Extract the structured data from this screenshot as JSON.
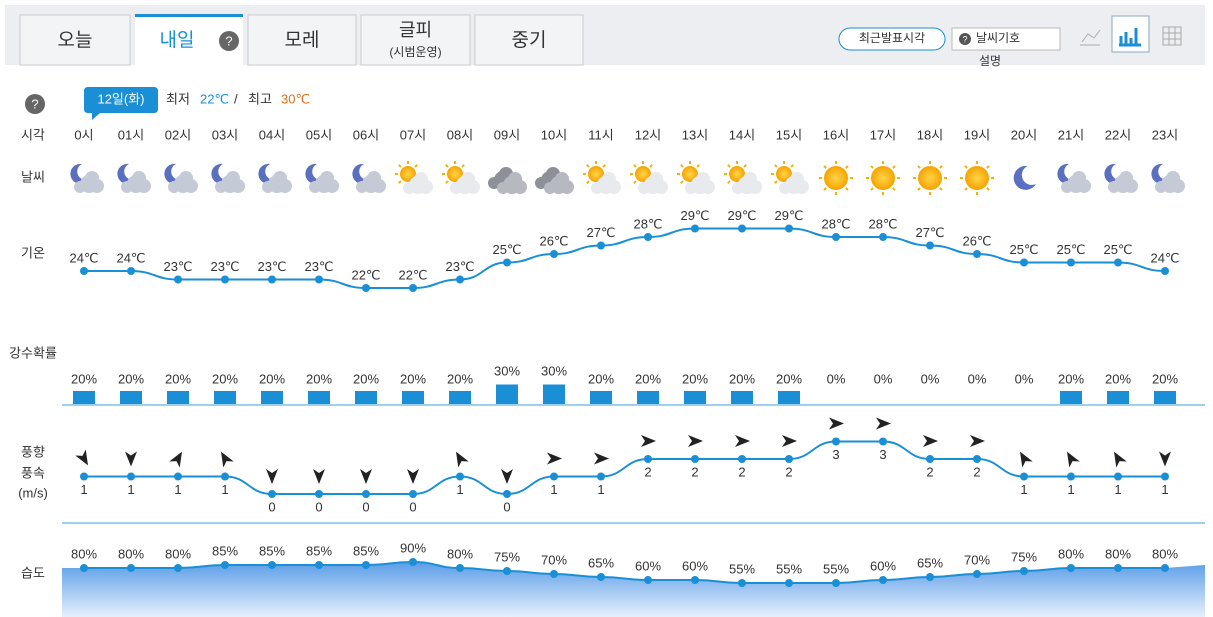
{
  "tabs": [
    {
      "label": "오늘"
    },
    {
      "label": "내일"
    },
    {
      "label": "모레"
    },
    {
      "label": "글피",
      "sub": "(시범운영)"
    },
    {
      "label": "중기"
    }
  ],
  "help": "?",
  "toolbar": {
    "latest": "최근발표시각",
    "symbols": "날씨기호",
    "explain": "설명"
  },
  "summary": {
    "date": "12일(화)",
    "min_label": "최저",
    "min": "22℃",
    "sep": "/",
    "max_label": "최고",
    "max": "30℃"
  },
  "rows": {
    "time": "시각",
    "weather": "날씨",
    "temp": "기온",
    "precip": "강수확률",
    "wind_dir": "풍향",
    "wind_speed": "풍속",
    "wind_unit": "(m/s)",
    "humidity": "습도"
  },
  "hours": [
    "0시",
    "01시",
    "02시",
    "03시",
    "04시",
    "05시",
    "06시",
    "07시",
    "08시",
    "09시",
    "10시",
    "11시",
    "12시",
    "13시",
    "14시",
    "15시",
    "16시",
    "17시",
    "18시",
    "19시",
    "20시",
    "21시",
    "22시",
    "23시"
  ],
  "temperature": {
    "values": [
      24,
      24,
      23,
      23,
      23,
      23,
      22,
      22,
      23,
      25,
      26,
      27,
      28,
      29,
      29,
      29,
      28,
      28,
      27,
      26,
      25,
      25,
      25,
      24
    ],
    "labels": [
      "24℃",
      "24℃",
      "23℃",
      "23℃",
      "23℃",
      "23℃",
      "22℃",
      "22℃",
      "23℃",
      "25℃",
      "26℃",
      "27℃",
      "28℃",
      "29℃",
      "29℃",
      "29℃",
      "28℃",
      "28℃",
      "27℃",
      "26℃",
      "25℃",
      "25℃",
      "25℃",
      "24℃"
    ]
  },
  "precipitation": {
    "values": [
      20,
      20,
      20,
      20,
      20,
      20,
      20,
      20,
      20,
      30,
      30,
      20,
      20,
      20,
      20,
      20,
      0,
      0,
      0,
      0,
      0,
      20,
      20,
      20
    ],
    "labels": [
      "20%",
      "20%",
      "20%",
      "20%",
      "20%",
      "20%",
      "20%",
      "20%",
      "20%",
      "30%",
      "30%",
      "20%",
      "20%",
      "20%",
      "20%",
      "20%",
      "0%",
      "0%",
      "0%",
      "0%",
      "0%",
      "20%",
      "20%",
      "20%"
    ]
  },
  "wind": {
    "values": [
      1,
      1,
      1,
      1,
      0,
      0,
      0,
      0,
      1,
      0,
      1,
      1,
      2,
      2,
      2,
      2,
      3,
      3,
      2,
      2,
      1,
      1,
      1,
      1
    ]
  },
  "humidity": {
    "values": [
      80,
      80,
      80,
      85,
      85,
      85,
      85,
      90,
      80,
      75,
      70,
      65,
      60,
      60,
      55,
      55,
      55,
      60,
      65,
      70,
      75,
      80,
      80,
      80
    ],
    "labels": [
      "80%",
      "80%",
      "80%",
      "85%",
      "85%",
      "85%",
      "85%",
      "90%",
      "80%",
      "75%",
      "70%",
      "65%",
      "60%",
      "60%",
      "55%",
      "55%",
      "55%",
      "60%",
      "65%",
      "70%",
      "75%",
      "80%",
      "80%",
      "80%"
    ]
  }
}
